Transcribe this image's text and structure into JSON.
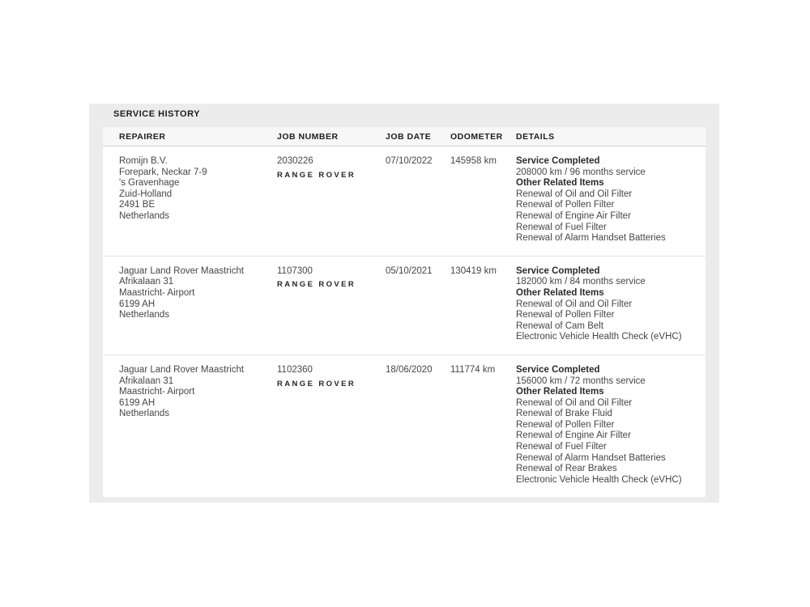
{
  "title": "SERVICE HISTORY",
  "table": {
    "columns": [
      "REPAIRER",
      "JOB NUMBER",
      "JOB DATE",
      "ODOMETER",
      "DETAILS"
    ],
    "rows": [
      {
        "repairer_lines": [
          "Romijn B.V.",
          "Forepark, Neckar 7-9",
          "'s Gravenhage",
          "Zuid-Holland",
          "2491 BE",
          "Netherlands"
        ],
        "job_number": "2030226",
        "brand_logo": "RANGE ROVER",
        "job_date": "07/10/2022",
        "odometer": "145958 km",
        "details": [
          {
            "text": "Service Completed",
            "bold": true
          },
          {
            "text": "208000 km / 96 months service",
            "bold": false
          },
          {
            "text": "Other Related Items",
            "bold": true
          },
          {
            "text": "Renewal of Oil and Oil Filter",
            "bold": false
          },
          {
            "text": "Renewal of Pollen Filter",
            "bold": false
          },
          {
            "text": "Renewal of Engine Air Filter",
            "bold": false
          },
          {
            "text": "Renewal of Fuel Filter",
            "bold": false
          },
          {
            "text": "Renewal of Alarm Handset Batteries",
            "bold": false
          }
        ]
      },
      {
        "repairer_lines": [
          "Jaguar Land Rover Maastricht",
          "Afrikalaan 31",
          "Maastricht- Airport",
          "6199 AH",
          "Netherlands"
        ],
        "job_number": "1107300",
        "brand_logo": "RANGE ROVER",
        "job_date": "05/10/2021",
        "odometer": "130419 km",
        "details": [
          {
            "text": "Service Completed",
            "bold": true
          },
          {
            "text": "182000 km / 84 months service",
            "bold": false
          },
          {
            "text": "Other Related Items",
            "bold": true
          },
          {
            "text": "Renewal of Oil and Oil Filter",
            "bold": false
          },
          {
            "text": "Renewal of Pollen Filter",
            "bold": false
          },
          {
            "text": "Renewal of Cam Belt",
            "bold": false
          },
          {
            "text": "Electronic Vehicle Health Check (eVHC)",
            "bold": false
          }
        ]
      },
      {
        "repairer_lines": [
          "Jaguar Land Rover Maastricht",
          "Afrikalaan 31",
          "Maastricht- Airport",
          "6199 AH",
          "Netherlands"
        ],
        "job_number": "1102360",
        "brand_logo": "RANGE ROVER",
        "job_date": "18/06/2020",
        "odometer": "111774 km",
        "details": [
          {
            "text": "Service Completed",
            "bold": true
          },
          {
            "text": "156000 km / 72 months service",
            "bold": false
          },
          {
            "text": "Other Related Items",
            "bold": true
          },
          {
            "text": "Renewal of Oil and Oil Filter",
            "bold": false
          },
          {
            "text": "Renewal of Brake Fluid",
            "bold": false
          },
          {
            "text": "Renewal of Pollen Filter",
            "bold": false
          },
          {
            "text": "Renewal of Engine Air Filter",
            "bold": false
          },
          {
            "text": "Renewal of Fuel Filter",
            "bold": false
          },
          {
            "text": "Renewal of Alarm Handset Batteries",
            "bold": false
          },
          {
            "text": "Renewal of Rear Brakes",
            "bold": false
          },
          {
            "text": "Electronic Vehicle Health Check (eVHC)",
            "bold": false
          }
        ]
      }
    ]
  },
  "colors": {
    "card_background": "#ececec",
    "header_strip_background": "#f7f7f7",
    "body_background": "#ffffff",
    "divider": "#e2e2e2",
    "text": "#464646",
    "text_bold": "#2b2b2b"
  }
}
